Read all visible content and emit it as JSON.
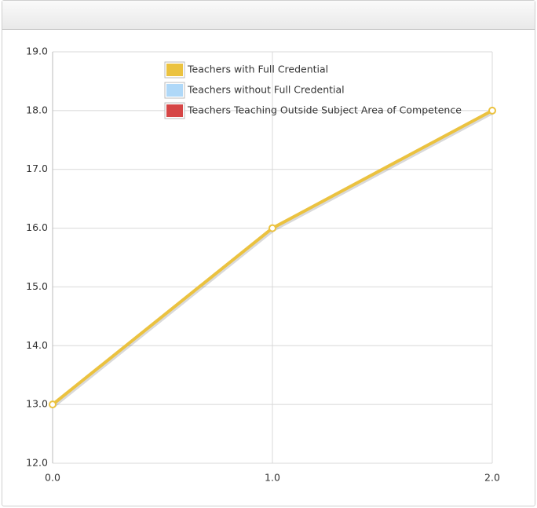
{
  "chart_data": {
    "type": "line",
    "x": [
      0,
      1,
      2
    ],
    "series": [
      {
        "name": "Teachers with Full Credential",
        "color": "#ebc23f",
        "values": [
          13,
          16,
          18
        ]
      },
      {
        "name": "Teachers without Full Credential",
        "color": "#afd8f8",
        "values": [
          null,
          null,
          null
        ]
      },
      {
        "name": "Teachers Teaching Outside Subject Area of Competence",
        "color": "#d64646",
        "values": [
          null,
          null,
          null
        ]
      }
    ],
    "xlim": [
      0,
      2
    ],
    "xticks": [
      {
        "value": 0,
        "label": "0.0"
      },
      {
        "value": 1,
        "label": "1.0"
      },
      {
        "value": 2,
        "label": "2.0"
      }
    ],
    "ylim": [
      12,
      19
    ],
    "yticks": [
      {
        "value": 12,
        "label": "12.0"
      },
      {
        "value": 13,
        "label": "13.0"
      },
      {
        "value": 14,
        "label": "14.0"
      },
      {
        "value": 15,
        "label": "15.0"
      },
      {
        "value": 16,
        "label": "16.0"
      },
      {
        "value": 17,
        "label": "17.0"
      },
      {
        "value": 18,
        "label": "18.0"
      },
      {
        "value": 19,
        "label": "19.0"
      }
    ],
    "grid": true,
    "legend": "top"
  }
}
